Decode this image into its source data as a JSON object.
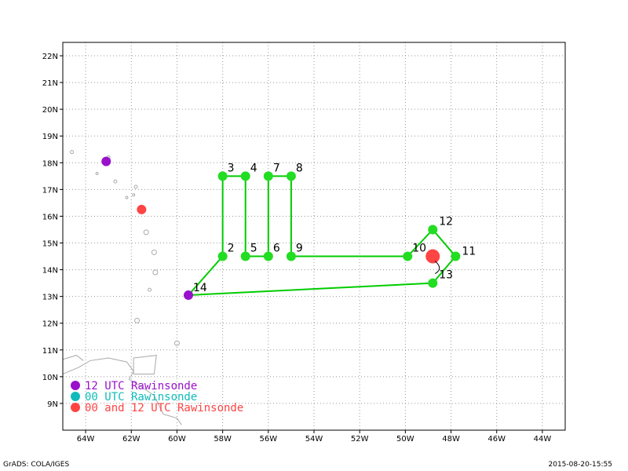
{
  "map": {
    "lon_range": [
      -65,
      -43
    ],
    "lat_range": [
      8,
      22.5
    ],
    "lon_ticks": [
      {
        "v": -64,
        "label": "64W"
      },
      {
        "v": -62,
        "label": "62W"
      },
      {
        "v": -60,
        "label": "60W"
      },
      {
        "v": -58,
        "label": "58W"
      },
      {
        "v": -56,
        "label": "56W"
      },
      {
        "v": -54,
        "label": "54W"
      },
      {
        "v": -52,
        "label": "52W"
      },
      {
        "v": -50,
        "label": "50W"
      },
      {
        "v": -48,
        "label": "48W"
      },
      {
        "v": -46,
        "label": "46W"
      },
      {
        "v": -44,
        "label": "44W"
      }
    ],
    "lat_ticks": [
      {
        "v": 9,
        "label": "9N"
      },
      {
        "v": 10,
        "label": "10N"
      },
      {
        "v": 11,
        "label": "11N"
      },
      {
        "v": 12,
        "label": "12N"
      },
      {
        "v": 13,
        "label": "13N"
      },
      {
        "v": 14,
        "label": "14N"
      },
      {
        "v": 15,
        "label": "15N"
      },
      {
        "v": 16,
        "label": "16N"
      },
      {
        "v": 17,
        "label": "17N"
      },
      {
        "v": 18,
        "label": "18N"
      },
      {
        "v": 19,
        "label": "19N"
      },
      {
        "v": 20,
        "label": "20N"
      },
      {
        "v": 21,
        "label": "21N"
      },
      {
        "v": 22,
        "label": "22N"
      }
    ]
  },
  "colors": {
    "track": "#00cc00",
    "waypoint": "#22dd22",
    "utc12": "#9911cc",
    "utc00": "#11bbbb",
    "both": "#ff4444",
    "coast": "#aaaaaa",
    "grid": "#999999"
  },
  "waypoints": [
    {
      "n": "2",
      "lon": -58.0,
      "lat": 14.5
    },
    {
      "n": "3",
      "lon": -58.0,
      "lat": 17.5
    },
    {
      "n": "4",
      "lon": -57.0,
      "lat": 17.5
    },
    {
      "n": "5",
      "lon": -57.0,
      "lat": 14.5
    },
    {
      "n": "6",
      "lon": -56.0,
      "lat": 14.5
    },
    {
      "n": "7",
      "lon": -56.0,
      "lat": 17.5
    },
    {
      "n": "8",
      "lon": -55.0,
      "lat": 17.5
    },
    {
      "n": "9",
      "lon": -55.0,
      "lat": 14.5
    },
    {
      "n": "10",
      "lon": -49.9,
      "lat": 14.5
    },
    {
      "n": "11",
      "lon": -47.8,
      "lat": 14.5
    },
    {
      "n": "12",
      "lon": -48.8,
      "lat": 15.5
    },
    {
      "n": "13",
      "lon": -48.8,
      "lat": 13.5
    },
    {
      "n": "14",
      "lon": -59.5,
      "lat": 13.05
    }
  ],
  "track_order": [
    "14",
    "2",
    "3",
    "4",
    "5",
    "6",
    "7",
    "8",
    "9",
    "10",
    "12",
    "11",
    "13",
    "14"
  ],
  "storm_center": {
    "lon": -48.8,
    "lat": 14.5
  },
  "rawinsonde_stations": [
    {
      "type": "utc12",
      "lon": -63.1,
      "lat": 18.05
    },
    {
      "type": "both",
      "lon": -61.55,
      "lat": 16.25
    }
  ],
  "legend": {
    "utc12": "12 UTC Rawinsonde",
    "utc00": "00 UTC Rawinsonde",
    "both": "00 and 12 UTC Rawinsonde"
  },
  "footer": {
    "left": "GrADS: COLA/IGES",
    "right": "2015-08-20-15:55"
  }
}
